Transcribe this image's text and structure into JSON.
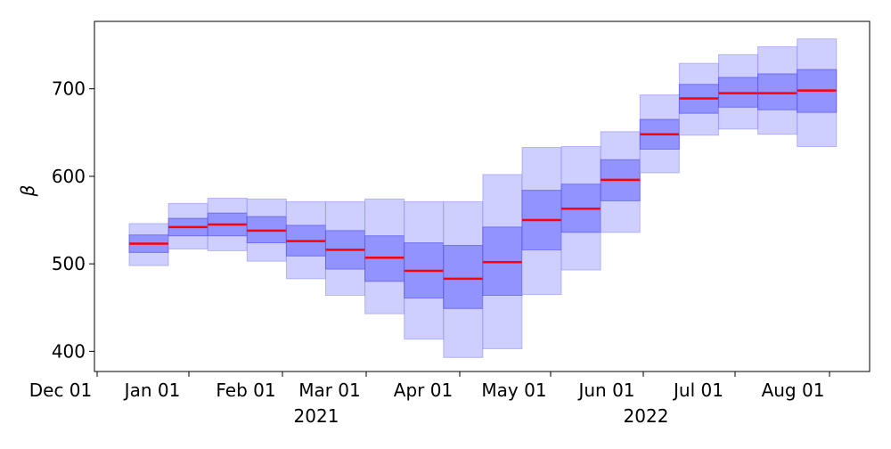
{
  "chart_data": {
    "type": "box",
    "title": "",
    "xlabel": "",
    "ylabel": "β",
    "ylim": [
      377,
      777
    ],
    "yticks": [
      400,
      500,
      600,
      700
    ],
    "grid": false,
    "x_tick_labels": [
      "Dec 01",
      "Jan 01",
      "Feb 01",
      "Mar 01",
      "Apr 01",
      "May 01",
      "Jun 01",
      "Jul 01",
      "Aug 01"
    ],
    "x_year_labels": [
      "2021",
      "2022"
    ],
    "colors": {
      "outer": "#ccccff",
      "inner": "#8c8cff",
      "edge": "#8080ff",
      "median": "#ff0000"
    },
    "boxes": [
      {
        "outer_low": 498,
        "inner_low": 513,
        "median": 523,
        "inner_high": 533,
        "outer_high": 546
      },
      {
        "outer_low": 517,
        "inner_low": 532,
        "median": 542,
        "inner_high": 552,
        "outer_high": 569
      },
      {
        "outer_low": 515,
        "inner_low": 532,
        "median": 545,
        "inner_high": 558,
        "outer_high": 575
      },
      {
        "outer_low": 503,
        "inner_low": 524,
        "median": 538,
        "inner_high": 554,
        "outer_high": 574
      },
      {
        "outer_low": 483,
        "inner_low": 509,
        "median": 526,
        "inner_high": 544,
        "outer_high": 571
      },
      {
        "outer_low": 464,
        "inner_low": 494,
        "median": 516,
        "inner_high": 538,
        "outer_high": 571
      },
      {
        "outer_low": 443,
        "inner_low": 480,
        "median": 507,
        "inner_high": 532,
        "outer_high": 574
      },
      {
        "outer_low": 414,
        "inner_low": 461,
        "median": 492,
        "inner_high": 524,
        "outer_high": 571
      },
      {
        "outer_low": 393,
        "inner_low": 449,
        "median": 483,
        "inner_high": 521,
        "outer_high": 571
      },
      {
        "outer_low": 403,
        "inner_low": 464,
        "median": 502,
        "inner_high": 542,
        "outer_high": 602
      },
      {
        "outer_low": 465,
        "inner_low": 516,
        "median": 550,
        "inner_high": 584,
        "outer_high": 633
      },
      {
        "outer_low": 493,
        "inner_low": 536,
        "median": 563,
        "inner_high": 591,
        "outer_high": 634
      },
      {
        "outer_low": 536,
        "inner_low": 572,
        "median": 596,
        "inner_high": 619,
        "outer_high": 651
      },
      {
        "outer_low": 604,
        "inner_low": 631,
        "median": 648,
        "inner_high": 665,
        "outer_high": 693
      },
      {
        "outer_low": 647,
        "inner_low": 672,
        "median": 689,
        "inner_high": 705,
        "outer_high": 729
      },
      {
        "outer_low": 654,
        "inner_low": 679,
        "median": 695,
        "inner_high": 713,
        "outer_high": 739
      },
      {
        "outer_low": 648,
        "inner_low": 676,
        "median": 695,
        "inner_high": 717,
        "outer_high": 748
      },
      {
        "outer_low": 634,
        "inner_low": 673,
        "median": 698,
        "inner_high": 722,
        "outer_high": 757
      }
    ]
  }
}
